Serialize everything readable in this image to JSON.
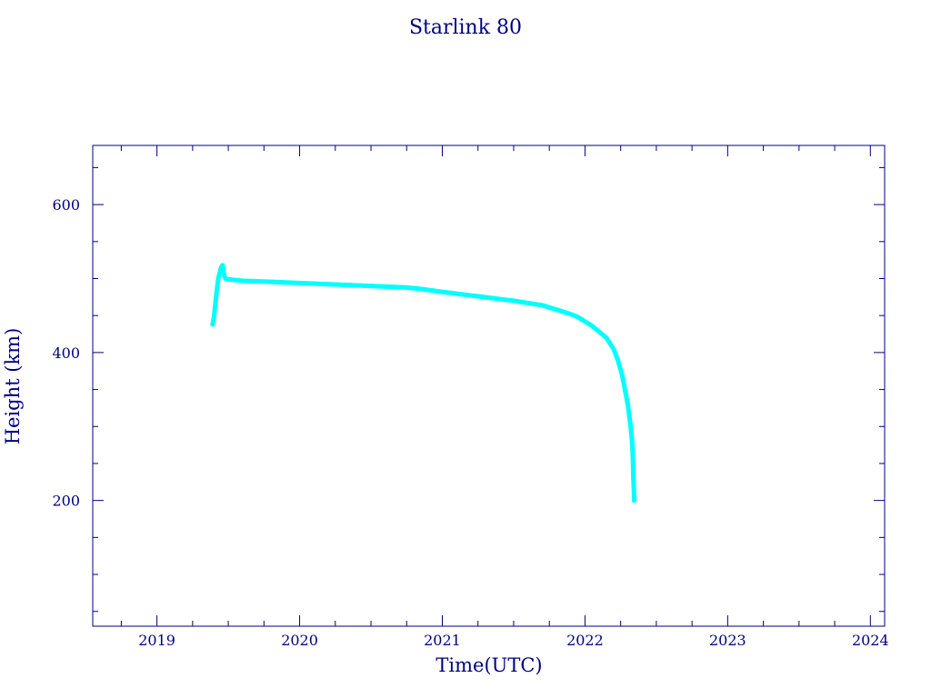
{
  "chart_data": {
    "type": "scatter",
    "title": "Starlink 80",
    "xlabel": "Time(UTC)",
    "ylabel": "Height (km)",
    "x_ticks": [
      2019,
      2020,
      2021,
      2022,
      2023,
      2024
    ],
    "y_ticks": [
      200,
      400,
      600
    ],
    "xlim": [
      2018.55,
      2024.1
    ],
    "ylim": [
      30,
      680
    ],
    "grid": false,
    "colors": {
      "axis": "#000080",
      "text": "#000080",
      "points": "#00ffff",
      "line": "#7a3300"
    },
    "series": [
      {
        "x": [
          2019.39,
          2019.4,
          2019.41,
          2019.42,
          2019.43,
          2019.44,
          2019.45,
          2019.46,
          2019.47,
          2019.48,
          2019.5,
          2019.6,
          2019.75,
          2020.0,
          2020.25,
          2020.5,
          2020.75,
          2020.85,
          2021.0,
          2021.25,
          2021.5,
          2021.7,
          2021.8,
          2021.9,
          2021.95,
          2022.0,
          2022.05,
          2022.1,
          2022.15,
          2022.2,
          2022.23,
          2022.26,
          2022.28,
          2022.3,
          2022.31,
          2022.32,
          2022.325,
          2022.33,
          2022.333,
          2022.336,
          2022.339,
          2022.342,
          2022.345
        ],
        "y": [
          438,
          448,
          467,
          485,
          500,
          508,
          515,
          518,
          505,
          500,
          499,
          497,
          496,
          494,
          492,
          490,
          488,
          486,
          482,
          476,
          470,
          464,
          458,
          452,
          448,
          442,
          436,
          428,
          420,
          405,
          390,
          370,
          350,
          330,
          315,
          300,
          290,
          280,
          270,
          255,
          230,
          218,
          200
        ]
      }
    ]
  }
}
